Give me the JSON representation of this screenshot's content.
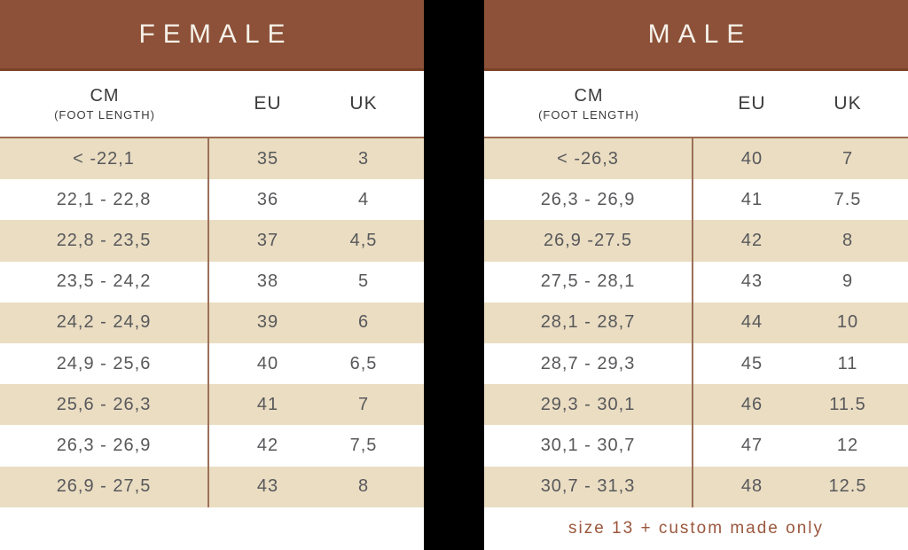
{
  "colors": {
    "banner_brown": "#8C5138",
    "banner_border": "#7A4129",
    "row_beige": "#EADDC2",
    "divider_brown": "#9C7058",
    "body_text_gray": "#58585B",
    "footnote_brown": "#9A573D",
    "gap_black": "#000000",
    "banner_text": "#F6F1E9"
  },
  "chart_data": [
    {
      "type": "table",
      "title": "FEMALE",
      "header": {
        "cm": "CM",
        "cm_sub": "(FOOT LENGTH)",
        "eu": "EU",
        "uk": "UK"
      },
      "rows": [
        {
          "cm": "< -22,1",
          "eu": "35",
          "uk": "3"
        },
        {
          "cm": "22,1 - 22,8",
          "eu": "36",
          "uk": "4"
        },
        {
          "cm": "22,8 - 23,5",
          "eu": "37",
          "uk": "4,5"
        },
        {
          "cm": "23,5 - 24,2",
          "eu": "38",
          "uk": "5"
        },
        {
          "cm": "24,2 - 24,9",
          "eu": "39",
          "uk": "6"
        },
        {
          "cm": "24,9 - 25,6",
          "eu": "40",
          "uk": "6,5"
        },
        {
          "cm": "25,6 - 26,3",
          "eu": "41",
          "uk": "7"
        },
        {
          "cm": "26,3 - 26,9",
          "eu": "42",
          "uk": "7,5"
        },
        {
          "cm": "26,9 - 27,5",
          "eu": "43",
          "uk": "8"
        }
      ],
      "footnote": ""
    },
    {
      "type": "table",
      "title": "MALE",
      "header": {
        "cm": "CM",
        "cm_sub": "(FOOT LENGTH)",
        "eu": "EU",
        "uk": "UK"
      },
      "rows": [
        {
          "cm": "< -26,3",
          "eu": "40",
          "uk": "7"
        },
        {
          "cm": "26,3 - 26,9",
          "eu": "41",
          "uk": "7.5"
        },
        {
          "cm": "26,9 -27.5",
          "eu": "42",
          "uk": "8"
        },
        {
          "cm": "27,5 - 28,1",
          "eu": "43",
          "uk": "9"
        },
        {
          "cm": "28,1 - 28,7",
          "eu": "44",
          "uk": "10"
        },
        {
          "cm": "28,7 - 29,3",
          "eu": "45",
          "uk": "11"
        },
        {
          "cm": "29,3 - 30,1",
          "eu": "46",
          "uk": "11.5"
        },
        {
          "cm": "30,1 - 30,7",
          "eu": "47",
          "uk": "12"
        },
        {
          "cm": "30,7 - 31,3",
          "eu": "48",
          "uk": "12.5"
        }
      ],
      "footnote": "size 13 + custom made only"
    }
  ]
}
